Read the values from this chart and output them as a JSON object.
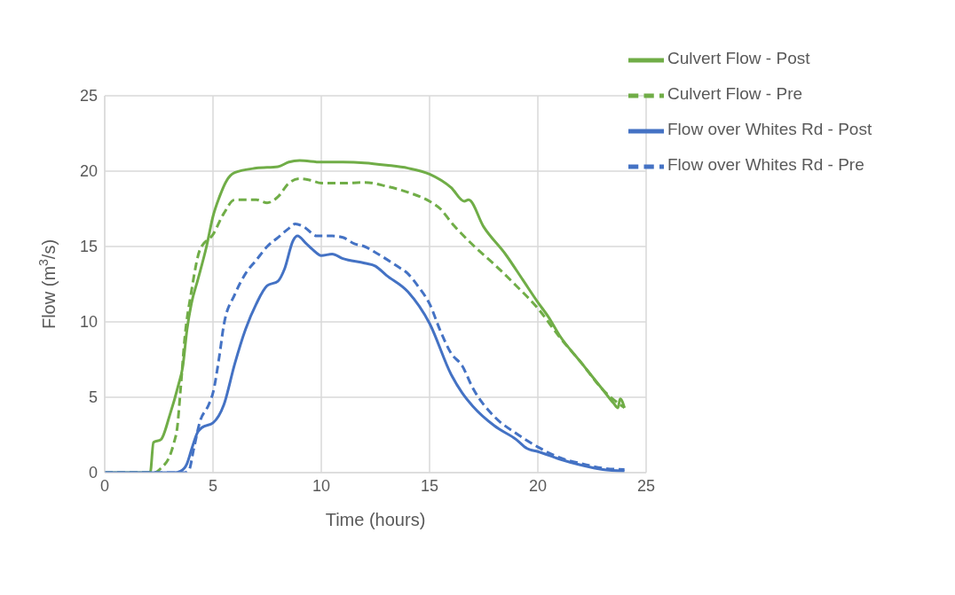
{
  "chart_data": {
    "type": "line",
    "xlabel": "Time (hours)",
    "ylabel": "Flow (m$^{3}$/s)",
    "xlim": [
      0,
      25
    ],
    "xticks": [
      0,
      5,
      10,
      15,
      20,
      25
    ],
    "ylim": [
      0,
      25
    ],
    "yticks": [
      0,
      5,
      10,
      15,
      20,
      25
    ],
    "grid": true,
    "legend": "top right",
    "marker": "none",
    "series": [
      {
        "name": "Culvert Flow - Post",
        "color": "#70ad47",
        "line_style": "solid",
        "x": [
          0,
          2.1,
          2.25,
          2.6,
          3.0,
          3.4,
          3.6,
          3.8,
          4.0,
          4.3,
          4.7,
          5.0,
          5.3,
          5.6,
          6.0,
          7.0,
          8.0,
          8.5,
          9.0,
          10,
          11,
          12,
          13,
          14,
          15,
          16,
          16.6,
          16.8,
          17.5,
          18.5,
          19.3,
          20,
          20.5,
          21,
          22,
          23,
          23.5,
          23.7,
          23.8,
          24
        ],
        "values": [
          0,
          0,
          2,
          2.2,
          3.8,
          5.8,
          7,
          9.5,
          11.2,
          12.8,
          15,
          17,
          18.3,
          19.3,
          19.9,
          20.2,
          20.3,
          20.6,
          20.7,
          20.6,
          20.6,
          20.55,
          20.4,
          20.2,
          19.8,
          18.9,
          18,
          18.1,
          16.3,
          14.5,
          12.8,
          11.3,
          10.3,
          9.1,
          7.3,
          5.5,
          4.6,
          4.3,
          4.9,
          4.3
        ]
      },
      {
        "name": "Culvert Flow - Pre",
        "color": "#70ad47",
        "line_style": "dashed",
        "x": [
          0,
          2.3,
          2.6,
          3.0,
          3.2,
          3.35,
          3.5,
          3.7,
          4.0,
          4.4,
          5.0,
          5.5,
          6.0,
          7.0,
          7.5,
          8.0,
          8.5,
          9.0,
          9.5,
          10,
          11,
          12,
          13,
          14,
          15,
          15.5,
          16,
          17,
          18,
          19,
          20,
          21,
          22,
          23,
          24
        ],
        "values": [
          0,
          0,
          0.3,
          1.1,
          2,
          3,
          5.5,
          9,
          12,
          14.8,
          15.8,
          17.2,
          18.1,
          18.1,
          17.9,
          18.3,
          19.2,
          19.5,
          19.4,
          19.2,
          19.2,
          19.25,
          19,
          18.6,
          18,
          17.5,
          16.6,
          15.1,
          13.8,
          12.4,
          10.9,
          9,
          7.3,
          5.5,
          4.3
        ]
      },
      {
        "name": "Flow over Whites Rd - Post",
        "color": "#4472c4",
        "line_style": "solid",
        "x": [
          0,
          3.2,
          3.5,
          3.8,
          4.0,
          4.3,
          4.5,
          5.0,
          5.5,
          6.0,
          6.5,
          7.0,
          7.5,
          8.0,
          8.3,
          8.7,
          8.9,
          9.3,
          9.6,
          10,
          10.5,
          11,
          12,
          12.5,
          13,
          14,
          15,
          16,
          16.5,
          17,
          18,
          19,
          19.5,
          20,
          21,
          22,
          23,
          24
        ],
        "values": [
          0,
          0,
          0.1,
          0.6,
          1.5,
          2.7,
          3,
          3.3,
          4.5,
          7.2,
          9.5,
          11.2,
          12.4,
          12.7,
          13.5,
          15.4,
          15.7,
          15.2,
          14.8,
          14.4,
          14.5,
          14.2,
          13.9,
          13.7,
          13.1,
          12,
          9.9,
          6.5,
          5.3,
          4.4,
          3.1,
          2.2,
          1.6,
          1.4,
          0.9,
          0.5,
          0.2,
          0.1
        ]
      },
      {
        "name": "Flow over Whites Rd - Pre",
        "color": "#4472c4",
        "line_style": "dashed",
        "x": [
          0,
          3.7,
          3.9,
          4.1,
          4.4,
          4.8,
          5.0,
          5.3,
          5.5,
          6.0,
          6.5,
          7.0,
          7.5,
          8.0,
          8.5,
          8.8,
          9.2,
          9.8,
          10.5,
          11,
          11.5,
          12,
          12.5,
          13.5,
          14,
          14.5,
          15,
          15.5,
          16,
          16.5,
          17,
          18,
          19,
          20,
          21,
          22,
          23,
          24
        ],
        "values": [
          0,
          0,
          0.2,
          1.5,
          3.4,
          4.5,
          5.3,
          7.8,
          9.8,
          11.8,
          13.2,
          14.1,
          15,
          15.6,
          16.2,
          16.5,
          16.3,
          15.7,
          15.7,
          15.6,
          15.2,
          15,
          14.6,
          13.7,
          13.2,
          12.3,
          11.2,
          9.4,
          7.9,
          7.1,
          5.6,
          3.7,
          2.6,
          1.7,
          1,
          0.6,
          0.3,
          0.2
        ]
      }
    ]
  }
}
